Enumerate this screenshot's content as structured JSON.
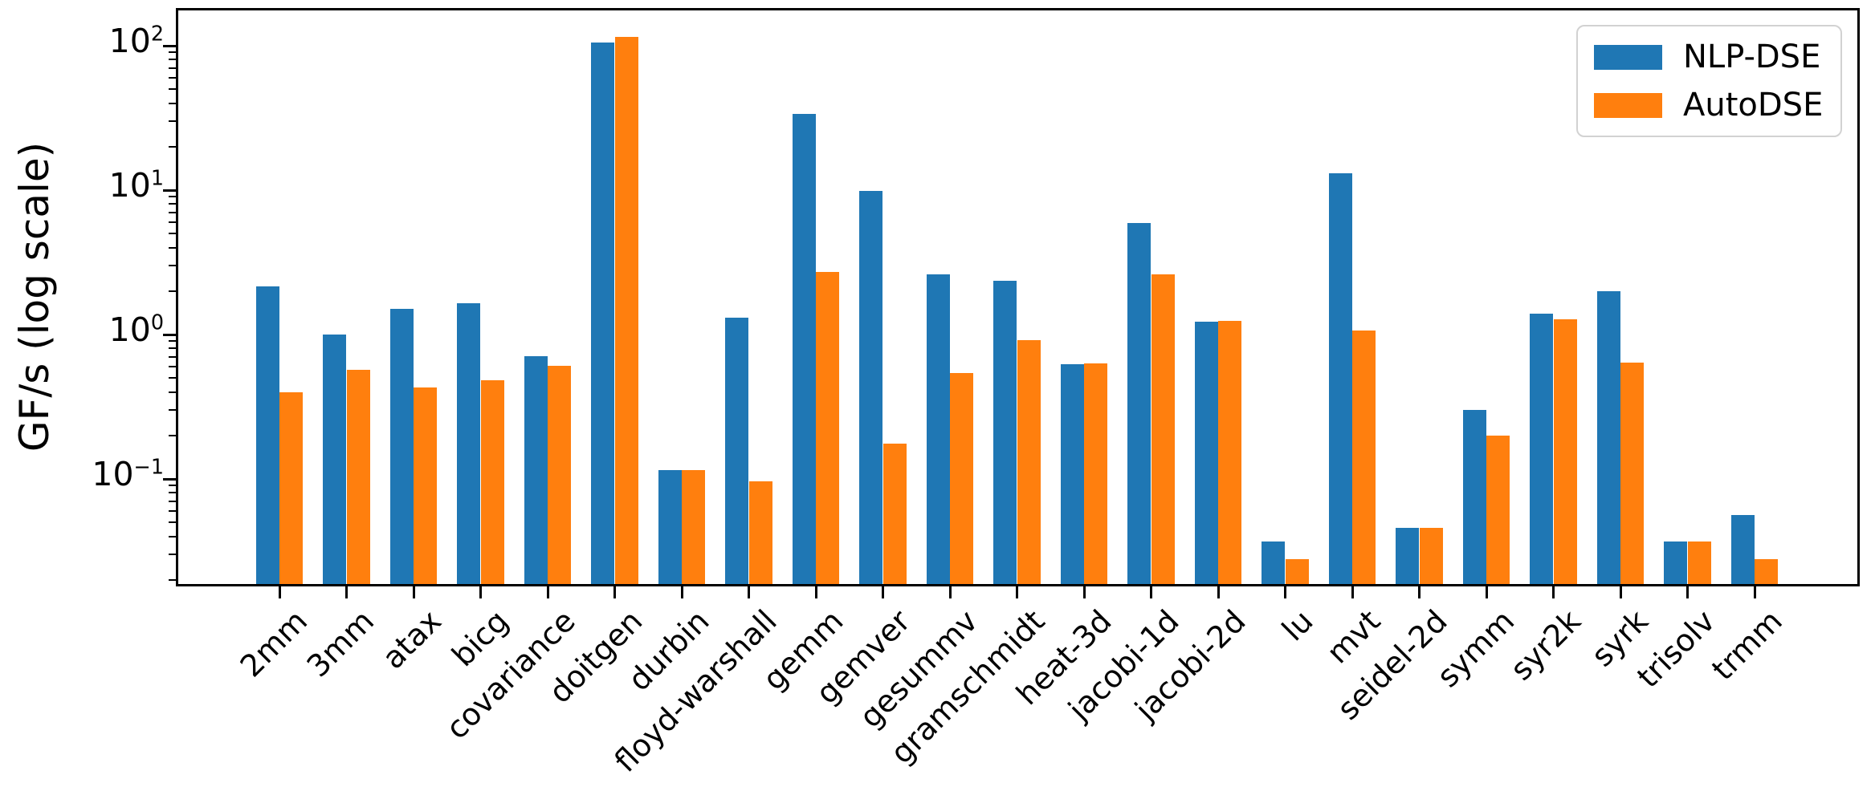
{
  "chart_data": {
    "type": "bar",
    "title": "",
    "ylabel": "GF/s (log scale)",
    "xlabel": "",
    "yscale": "log",
    "ylim": [
      0.0187,
      175
    ],
    "ytick_values": [
      100,
      10,
      1,
      0.1
    ],
    "ytick_exponents": [
      2,
      1,
      0,
      -1
    ],
    "grid": false,
    "legend_position": "upper right",
    "categories": [
      "2mm",
      "3mm",
      "atax",
      "bicg",
      "covariance",
      "doitgen",
      "durbin",
      "floyd-warshall",
      "gemm",
      "gemver",
      "gesummv",
      "gramschmidt",
      "heat-3d",
      "jacobi-1d",
      "jacobi-2d",
      "lu",
      "mvt",
      "seidel-2d",
      "symm",
      "syr2k",
      "syrk",
      "trisolv",
      "trmm"
    ],
    "series": [
      {
        "name": "NLP-DSE",
        "color": "#1f77b4",
        "values": [
          2.15,
          1.0,
          1.5,
          1.65,
          0.71,
          105,
          0.115,
          1.3,
          33.5,
          9.9,
          2.6,
          2.35,
          0.62,
          5.9,
          1.23,
          0.037,
          13.0,
          0.046,
          0.3,
          1.4,
          2.0,
          0.037,
          0.056
        ]
      },
      {
        "name": "AutoDSE",
        "color": "#ff7f0e",
        "values": [
          0.4,
          0.57,
          0.43,
          0.48,
          0.61,
          115,
          0.115,
          0.096,
          2.7,
          0.175,
          0.54,
          0.92,
          0.63,
          2.6,
          1.25,
          0.028,
          1.07,
          0.046,
          0.2,
          1.27,
          0.64,
          0.037,
          0.028
        ]
      }
    ]
  }
}
